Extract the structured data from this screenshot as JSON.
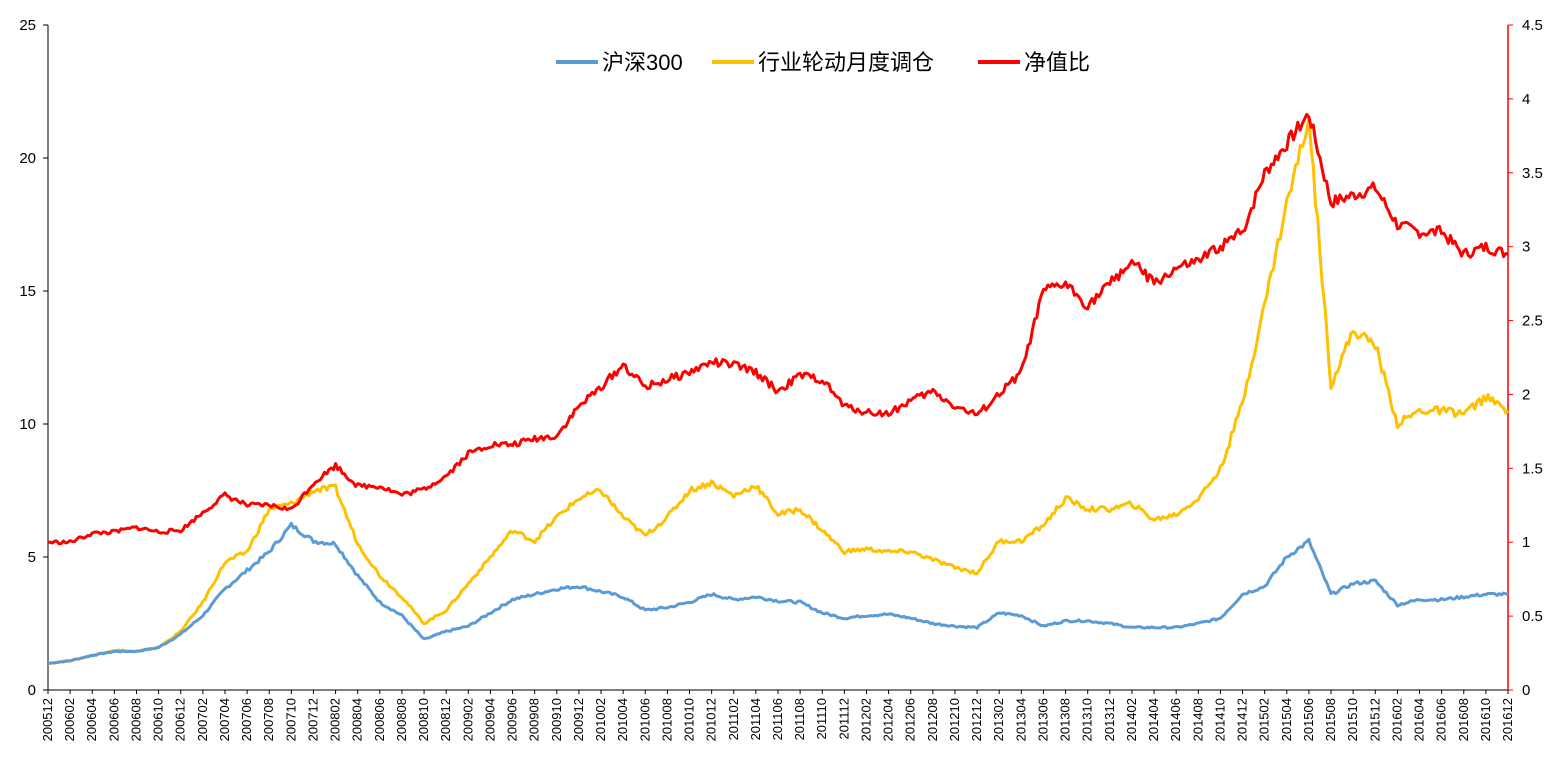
{
  "chart_data": {
    "type": "line",
    "x_ticks": [
      "200512",
      "200602",
      "200604",
      "200606",
      "200608",
      "200610",
      "200612",
      "200702",
      "200704",
      "200706",
      "200708",
      "200710",
      "200712",
      "200802",
      "200804",
      "200806",
      "200808",
      "200810",
      "200812",
      "200902",
      "200904",
      "200906",
      "200908",
      "200910",
      "200912",
      "201002",
      "201004",
      "201006",
      "201008",
      "201010",
      "201012",
      "201102",
      "201104",
      "201106",
      "201108",
      "201110",
      "201112",
      "201202",
      "201204",
      "201206",
      "201208",
      "201210",
      "201212",
      "201302",
      "201304",
      "201306",
      "201308",
      "201310",
      "201312",
      "201402",
      "201404",
      "201406",
      "201408",
      "201410",
      "201412",
      "201502",
      "201504",
      "201506",
      "201508",
      "201510",
      "201512",
      "201602",
      "201604",
      "201606",
      "201608",
      "201610",
      "201612"
    ],
    "y_left": {
      "min": 0,
      "max": 25,
      "ticks": [
        "0",
        "5",
        "10",
        "15",
        "20",
        "25"
      ]
    },
    "y_right": {
      "min": 0,
      "max": 4.5,
      "ticks": [
        "0",
        "0.5",
        "1",
        "1.5",
        "2",
        "2.5",
        "3",
        "3.5",
        "4",
        "4.5"
      ]
    },
    "legend_position": "top-center",
    "series": [
      {
        "name": "沪深300",
        "axis": "left",
        "color": "#5B9BD5",
        "values": [
          1.0,
          1.1,
          1.3,
          1.45,
          1.45,
          1.6,
          2.1,
          2.8,
          3.8,
          4.5,
          5.2,
          6.2,
          5.6,
          5.5,
          4.3,
          3.3,
          2.8,
          1.9,
          2.2,
          2.4,
          2.9,
          3.4,
          3.6,
          3.8,
          3.9,
          3.7,
          3.5,
          3.0,
          3.1,
          3.3,
          3.6,
          3.4,
          3.5,
          3.35,
          3.3,
          2.9,
          2.7,
          2.8,
          2.85,
          2.7,
          2.5,
          2.4,
          2.35,
          2.9,
          2.8,
          2.4,
          2.6,
          2.6,
          2.5,
          2.35,
          2.35,
          2.35,
          2.5,
          2.7,
          3.6,
          3.9,
          5.0,
          5.6,
          3.6,
          4.0,
          4.1,
          3.2,
          3.4,
          3.4,
          3.5,
          3.6,
          3.6
        ]
      },
      {
        "name": "行业轮动月度调仓",
        "axis": "left",
        "color": "#FFC000",
        "values": [
          1.0,
          1.1,
          1.3,
          1.5,
          1.45,
          1.6,
          2.2,
          3.3,
          4.8,
          5.2,
          6.8,
          7.0,
          7.5,
          7.6,
          5.5,
          4.3,
          3.5,
          2.5,
          3.0,
          4.0,
          5.0,
          6.0,
          5.6,
          6.5,
          7.2,
          7.5,
          6.5,
          5.8,
          6.5,
          7.5,
          7.8,
          7.3,
          7.7,
          6.6,
          6.8,
          6.0,
          5.2,
          5.3,
          5.2,
          5.2,
          4.9,
          4.6,
          4.4,
          5.6,
          5.6,
          6.2,
          7.2,
          6.8,
          6.8,
          7.0,
          6.4,
          6.6,
          7.2,
          8.3,
          10.8,
          14.5,
          18.3,
          21.5,
          11.5,
          13.5,
          13.0,
          10.0,
          10.5,
          10.5,
          10.4,
          11.0,
          10.5
        ]
      },
      {
        "name": "净值比",
        "axis": "right",
        "color": "#FF0000",
        "values": [
          1.0,
          1.0,
          1.06,
          1.07,
          1.1,
          1.07,
          1.08,
          1.2,
          1.32,
          1.25,
          1.25,
          1.22,
          1.4,
          1.52,
          1.38,
          1.38,
          1.32,
          1.36,
          1.45,
          1.6,
          1.66,
          1.66,
          1.7,
          1.72,
          1.92,
          2.05,
          2.2,
          2.05,
          2.1,
          2.15,
          2.22,
          2.2,
          2.15,
          2.02,
          2.13,
          2.1,
          1.92,
          1.88,
          1.87,
          1.96,
          2.02,
          1.92,
          1.86,
          2.0,
          2.15,
          2.7,
          2.75,
          2.6,
          2.75,
          2.9,
          2.75,
          2.85,
          2.9,
          3.0,
          3.1,
          3.5,
          3.7,
          3.9,
          3.3,
          3.35,
          3.4,
          3.15,
          3.1,
          3.1,
          2.95,
          3.0,
          2.95
        ]
      }
    ]
  }
}
